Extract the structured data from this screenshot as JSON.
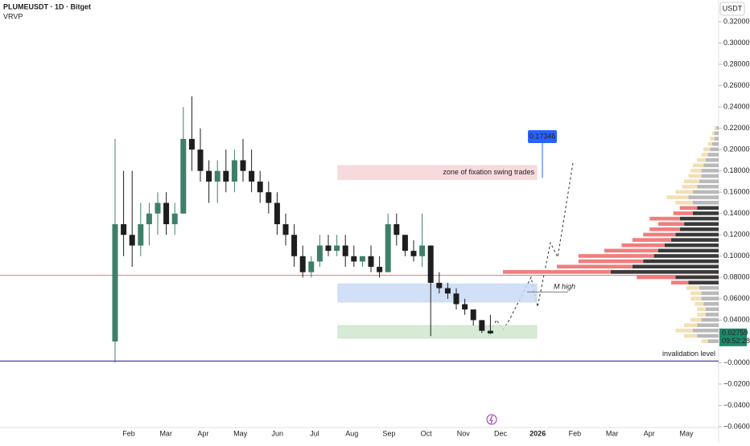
{
  "chart_data": {
    "type": "candlestick",
    "title": "PLUMEUSDT · 1D · Bitget",
    "indicator": "VRVP",
    "currency": "USDT",
    "categories": [
      "Feb",
      "Mar",
      "Apr",
      "May",
      "Jun",
      "Jul",
      "Aug",
      "Sep",
      "Oct",
      "Nov",
      "Dec",
      "2026",
      "Feb",
      "Mar",
      "Apr",
      "May"
    ],
    "open": [
      0.02,
      0.13,
      0.12,
      0.11,
      0.13,
      0.14,
      0.15,
      0.13,
      0.14,
      0.21,
      0.2,
      0.18,
      0.17,
      0.18,
      0.17,
      0.19,
      0.18,
      0.17,
      0.16,
      0.15,
      0.13,
      0.12,
      0.1,
      0.085,
      0.095,
      0.11,
      0.105,
      0.11,
      0.1,
      0.095,
      0.1,
      0.09,
      0.085,
      0.13,
      0.12,
      0.105,
      0.1,
      0.11,
      0.075,
      0.07,
      0.065,
      0.055,
      0.05,
      0.04,
      0.03
    ],
    "high": [
      0.21,
      0.18,
      0.18,
      0.15,
      0.15,
      0.16,
      0.16,
      0.15,
      0.24,
      0.25,
      0.22,
      0.19,
      0.19,
      0.2,
      0.2,
      0.21,
      0.2,
      0.18,
      0.17,
      0.16,
      0.14,
      0.13,
      0.11,
      0.1,
      0.12,
      0.12,
      0.12,
      0.12,
      0.11,
      0.1,
      0.11,
      0.1,
      0.14,
      0.14,
      0.12,
      0.115,
      0.14,
      0.11,
      0.085,
      0.075,
      0.07,
      0.06,
      0.05,
      0.04,
      0.045
    ],
    "low": [
      0.0,
      0.1,
      0.09,
      0.1,
      0.11,
      0.12,
      0.12,
      0.12,
      0.14,
      0.18,
      0.17,
      0.15,
      0.15,
      0.16,
      0.16,
      0.17,
      0.16,
      0.15,
      0.14,
      0.12,
      0.11,
      0.09,
      0.08,
      0.08,
      0.09,
      0.1,
      0.1,
      0.09,
      0.09,
      0.09,
      0.085,
      0.08,
      0.085,
      0.11,
      0.1,
      0.095,
      0.09,
      0.025,
      0.065,
      0.06,
      0.05,
      0.045,
      0.035,
      0.028,
      0.027
    ],
    "close": [
      0.13,
      0.12,
      0.11,
      0.13,
      0.14,
      0.15,
      0.13,
      0.14,
      0.21,
      0.2,
      0.18,
      0.17,
      0.18,
      0.17,
      0.19,
      0.18,
      0.17,
      0.16,
      0.15,
      0.13,
      0.12,
      0.1,
      0.085,
      0.095,
      0.11,
      0.105,
      0.11,
      0.1,
      0.095,
      0.1,
      0.09,
      0.085,
      0.13,
      0.12,
      0.105,
      0.1,
      0.11,
      0.075,
      0.07,
      0.065,
      0.055,
      0.05,
      0.04,
      0.03,
      0.0276
    ],
    "up_color": "#3f7f6a",
    "down_color": "#1e1e1e",
    "ylim": [
      -0.06,
      0.32
    ],
    "yticks": [
      {
        "value": 0.32,
        "label": "0.32000"
      },
      {
        "value": 0.3,
        "label": "0.30000"
      },
      {
        "value": 0.28,
        "label": "0.28000"
      },
      {
        "value": 0.26,
        "label": "0.26000"
      },
      {
        "value": 0.24,
        "label": "0.24000"
      },
      {
        "value": 0.22,
        "label": "0.22000"
      },
      {
        "value": 0.2,
        "label": "0.20000"
      },
      {
        "value": 0.18,
        "label": "0.18000"
      },
      {
        "value": 0.16,
        "label": "0.16000"
      },
      {
        "value": 0.14,
        "label": "0.14000"
      },
      {
        "value": 0.12,
        "label": "0.12000"
      },
      {
        "value": 0.1,
        "label": "0.10000"
      },
      {
        "value": 0.08,
        "label": "0.08000"
      },
      {
        "value": 0.06,
        "label": "0.06000"
      },
      {
        "value": 0.04,
        "label": "0.04000"
      },
      {
        "value": 0,
        "label": "−0.00000"
      },
      {
        "value": -0.02,
        "label": "−0.02000"
      },
      {
        "value": -0.04,
        "label": "−0.04000"
      },
      {
        "value": -0.06,
        "label": "−0.06000"
      }
    ],
    "last_price": 0.02759,
    "countdown": "09:52:28",
    "zones": [
      {
        "label": "zone of fixation swing trades",
        "top": 0.185,
        "bottom": 0.172,
        "color": "#f6d4d6"
      },
      {
        "label": null,
        "top": 0.074,
        "bottom": 0.057,
        "color": "#c9daf4"
      },
      {
        "label": null,
        "top": 0.035,
        "bottom": 0.023,
        "color": "#cfe6cf"
      }
    ],
    "target": 0.17346,
    "levels": [
      {
        "label": null,
        "value": 0.082,
        "color": "#f07070"
      },
      {
        "label": "invalidation level",
        "value": 0.0015,
        "color": "#6a4fb0"
      },
      {
        "label": "M high",
        "value": 0.0665,
        "color": "#555555"
      }
    ],
    "volume_profile": {
      "prices": [
        0.02,
        0.025,
        0.03,
        0.035,
        0.04,
        0.045,
        0.05,
        0.055,
        0.06,
        0.065,
        0.07,
        0.075,
        0.08,
        0.085,
        0.09,
        0.095,
        0.1,
        0.105,
        0.11,
        0.115,
        0.12,
        0.125,
        0.13,
        0.135,
        0.14,
        0.145,
        0.15,
        0.155,
        0.16,
        0.165,
        0.17,
        0.175,
        0.18,
        0.185,
        0.19,
        0.195,
        0.2,
        0.205,
        0.21,
        0.215,
        0.22
      ],
      "up": [
        5,
        10,
        12,
        10,
        8,
        6,
        6,
        7,
        8,
        8,
        9,
        14,
        20,
        50,
        40,
        35,
        30,
        28,
        25,
        22,
        20,
        18,
        16,
        18,
        12,
        10,
        12,
        14,
        12,
        10,
        9,
        8,
        8,
        7,
        6,
        5,
        4,
        3,
        2,
        2,
        1
      ],
      "down": [
        3,
        6,
        8,
        6,
        5,
        4,
        4,
        4,
        5,
        5,
        6,
        8,
        18,
        50,
        35,
        30,
        35,
        25,
        20,
        18,
        15,
        14,
        12,
        14,
        9,
        8,
        8,
        10,
        8,
        7,
        7,
        6,
        5,
        5,
        4,
        3,
        3,
        2,
        2,
        1,
        1
      ],
      "value_area": [
        0.075,
        0.145
      ]
    }
  }
}
